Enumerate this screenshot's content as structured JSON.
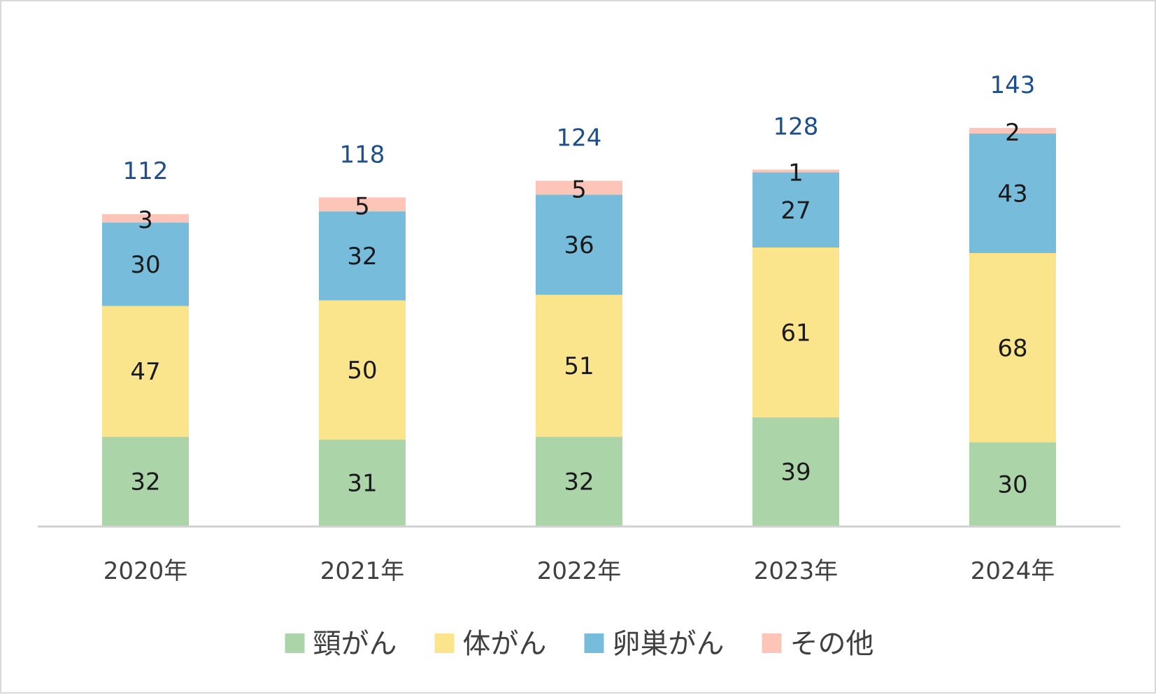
{
  "chart_data": {
    "type": "bar",
    "stacked": true,
    "title": "",
    "xlabel": "",
    "ylabel": "",
    "categories": [
      "2020年",
      "2021年",
      "2022年",
      "2023年",
      "2024年"
    ],
    "series": [
      {
        "name": "頸がん",
        "color": "#abd5a9",
        "values": [
          32,
          31,
          32,
          39,
          30
        ]
      },
      {
        "name": "体がん",
        "color": "#fae58d",
        "values": [
          47,
          50,
          51,
          61,
          68
        ]
      },
      {
        "name": "卵巣がん",
        "color": "#77bcdb",
        "values": [
          30,
          32,
          36,
          27,
          43
        ]
      },
      {
        "name": "その他",
        "color": "#fdc5b7",
        "values": [
          3,
          5,
          5,
          1,
          2
        ]
      }
    ],
    "totals": [
      112,
      118,
      124,
      128,
      143
    ],
    "total_label_color": "#1f4e8c",
    "ylim": [
      0,
      160
    ],
    "grid": false,
    "y_axis_visible": false,
    "legend_position": "bottom"
  }
}
